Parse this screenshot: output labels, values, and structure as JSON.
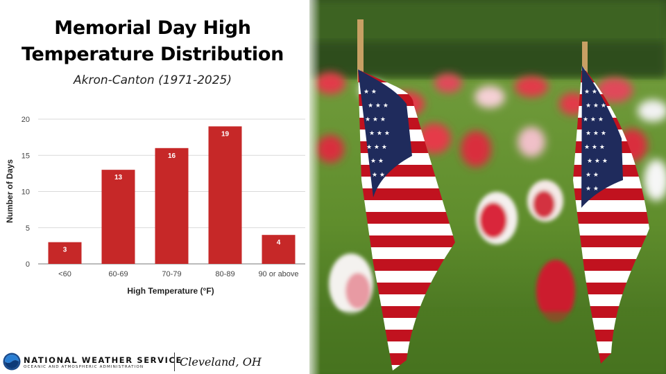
{
  "title_line1": "Memorial Day High",
  "title_line2": "Temperature Distribution",
  "subtitle": "Akron-Canton (1971-2025)",
  "footer": {
    "agency": "NATIONAL WEATHER SERVICE",
    "parent": "OCEANIC AND ATMOSPHERIC ADMINISTRATION",
    "office": "Cleveland, OH"
  },
  "photo": {
    "description_icon": "memorial-flags-photo"
  },
  "colors": {
    "bar": "#c62828",
    "grid": "#d9d9d9",
    "axis_text": "#444444"
  },
  "chart_data": {
    "type": "bar",
    "categories": [
      "<60",
      "60-69",
      "70-79",
      "80-89",
      "90 or above"
    ],
    "values": [
      3,
      13,
      16,
      19,
      4
    ],
    "data_labels": [
      "3",
      "13",
      "16",
      "19",
      "4"
    ],
    "xlabel": "High Temperature (°F)",
    "ylabel": "Number of Days",
    "ylim": [
      0,
      20
    ],
    "yticks": [
      0,
      5,
      10,
      15,
      20
    ],
    "grid": true,
    "legend": "none"
  }
}
